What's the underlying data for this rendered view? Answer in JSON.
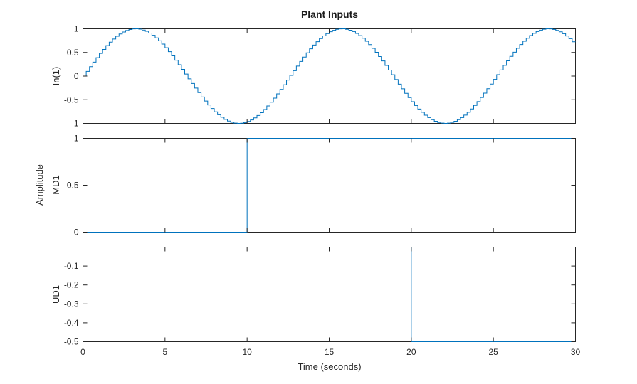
{
  "chart_data": {
    "type": "line",
    "title": "Plant Inputs",
    "xlabel": "Time (seconds)",
    "ylabel": "Amplitude",
    "xlim": [
      0,
      30
    ],
    "x_ticks": [
      "0",
      "5",
      "10",
      "15",
      "20",
      "25",
      "30"
    ],
    "series_color": "#0072BD",
    "grid": false,
    "subplots": [
      {
        "name": "In(1)",
        "ylim": [
          -1,
          1
        ],
        "y_ticks": [
          "1",
          "0.5",
          "0",
          "-0.5",
          "-1"
        ],
        "style": "staircase",
        "signal": {
          "kind": "sine",
          "amplitude": 1,
          "period": 12.57,
          "sample_time": 0.2
        },
        "x_range": [
          0,
          30
        ]
      },
      {
        "name": "MD1",
        "ylim": [
          0,
          1
        ],
        "y_ticks": [
          "1",
          "0.5",
          "0"
        ],
        "style": "step",
        "x": [
          0,
          10,
          10,
          30
        ],
        "y": [
          0,
          0,
          1,
          1
        ]
      },
      {
        "name": "UD1",
        "ylim": [
          -0.5,
          0
        ],
        "y_ticks": [
          "-0.1",
          "-0.2",
          "-0.3",
          "-0.4",
          "-0.5"
        ],
        "style": "step",
        "x": [
          0,
          20,
          20,
          30
        ],
        "y": [
          0,
          0,
          -0.5,
          -0.5
        ]
      }
    ]
  }
}
